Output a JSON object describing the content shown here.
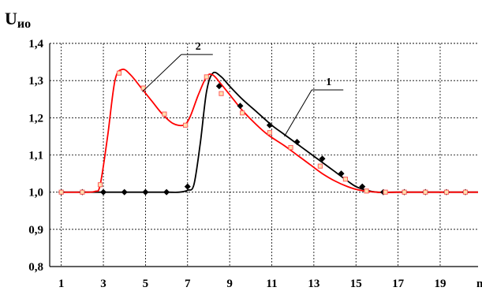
{
  "chart_data": {
    "type": "line",
    "ylabel": "U",
    "ylabel_sub": "ио",
    "xlabel": "n",
    "xlim": [
      0.45,
      20.8
    ],
    "ylim": [
      0.8,
      1.4
    ],
    "x_ticks": [
      1,
      3,
      5,
      7,
      9,
      11,
      13,
      15,
      17,
      19
    ],
    "y_ticks": [
      {
        "value": 0.8,
        "label": "0,8"
      },
      {
        "value": 0.9,
        "label": "0,9"
      },
      {
        "value": 1.0,
        "label": "1,0"
      },
      {
        "value": 1.1,
        "label": "1,1"
      },
      {
        "value": 1.2,
        "label": "1,2"
      },
      {
        "value": 1.3,
        "label": "1,3"
      },
      {
        "value": 1.4,
        "label": "1,4"
      }
    ],
    "grid": true,
    "series": [
      {
        "name": "1",
        "color": "#000000",
        "marker": "diamond",
        "curve": [
          [
            1,
            1.0
          ],
          [
            2,
            1.0
          ],
          [
            3,
            1.0
          ],
          [
            4,
            1.0
          ],
          [
            5,
            1.0
          ],
          [
            6,
            1.0
          ],
          [
            6.6,
            1.0
          ],
          [
            7,
            1.005
          ],
          [
            7.3,
            1.02
          ],
          [
            7.6,
            1.13
          ],
          [
            7.9,
            1.27
          ],
          [
            8.2,
            1.32
          ],
          [
            8.6,
            1.31
          ],
          [
            9,
            1.285
          ],
          [
            9.6,
            1.25
          ],
          [
            10.2,
            1.22
          ],
          [
            11,
            1.18
          ],
          [
            11.6,
            1.155
          ],
          [
            12.2,
            1.13
          ],
          [
            12.8,
            1.105
          ],
          [
            13.4,
            1.08
          ],
          [
            14,
            1.055
          ],
          [
            14.6,
            1.03
          ],
          [
            15,
            1.015
          ],
          [
            15.5,
            1.005
          ],
          [
            16,
            1.0
          ],
          [
            17,
            1.0
          ],
          [
            18,
            1.0
          ],
          [
            19,
            1.0
          ],
          [
            20,
            1.0
          ],
          [
            20.8,
            1.0
          ]
        ],
        "markers": [
          [
            1,
            1.0
          ],
          [
            2,
            1.0
          ],
          [
            3,
            1.0
          ],
          [
            4,
            1.0
          ],
          [
            5,
            1.0
          ],
          [
            6,
            1.0
          ],
          [
            7,
            1.015
          ],
          [
            8.5,
            1.285
          ],
          [
            9.5,
            1.232
          ],
          [
            10.9,
            1.18
          ],
          [
            12.2,
            1.135
          ],
          [
            13.4,
            1.09
          ],
          [
            14.3,
            1.05
          ],
          [
            15.3,
            1.015
          ],
          [
            16.3,
            1.0
          ],
          [
            17.3,
            1.0
          ],
          [
            18.3,
            1.0
          ],
          [
            19.3,
            1.0
          ],
          [
            20.2,
            1.0
          ]
        ]
      },
      {
        "name": "2",
        "color": "#ff0000",
        "marker": "square",
        "curve": [
          [
            1,
            1.0
          ],
          [
            2,
            1.0
          ],
          [
            2.6,
            1.002
          ],
          [
            2.85,
            1.02
          ],
          [
            3.2,
            1.15
          ],
          [
            3.55,
            1.3
          ],
          [
            3.9,
            1.33
          ],
          [
            4.3,
            1.315
          ],
          [
            4.8,
            1.28
          ],
          [
            5.3,
            1.245
          ],
          [
            5.8,
            1.21
          ],
          [
            6.3,
            1.185
          ],
          [
            6.8,
            1.18
          ],
          [
            7.1,
            1.2
          ],
          [
            7.5,
            1.26
          ],
          [
            7.9,
            1.31
          ],
          [
            8.2,
            1.315
          ],
          [
            8.6,
            1.29
          ],
          [
            9.1,
            1.255
          ],
          [
            9.6,
            1.22
          ],
          [
            10.2,
            1.185
          ],
          [
            10.8,
            1.155
          ],
          [
            11.6,
            1.125
          ],
          [
            12.2,
            1.1
          ],
          [
            12.8,
            1.075
          ],
          [
            13.4,
            1.05
          ],
          [
            14,
            1.03
          ],
          [
            14.6,
            1.015
          ],
          [
            15.2,
            1.005
          ],
          [
            16,
            1.0
          ],
          [
            17,
            1.0
          ],
          [
            18,
            1.0
          ],
          [
            19,
            1.0
          ],
          [
            20,
            1.0
          ],
          [
            20.8,
            1.0
          ]
        ],
        "markers": [
          [
            1,
            1.0
          ],
          [
            2,
            1.0
          ],
          [
            2.85,
            1.02
          ],
          [
            3.75,
            1.32
          ],
          [
            4.9,
            1.28
          ],
          [
            5.9,
            1.21
          ],
          [
            6.9,
            1.18
          ],
          [
            7.9,
            1.31
          ],
          [
            8.6,
            1.265
          ],
          [
            9.6,
            1.213
          ],
          [
            10.9,
            1.16
          ],
          [
            11.9,
            1.12
          ],
          [
            13.3,
            1.07
          ],
          [
            14.5,
            1.035
          ],
          [
            15.5,
            1.003
          ],
          [
            16.4,
            1.0
          ],
          [
            17.3,
            1.0
          ],
          [
            18.3,
            1.0
          ],
          [
            19.3,
            1.0
          ],
          [
            20.2,
            1.0
          ]
        ]
      }
    ],
    "annotations": [
      {
        "text": "2",
        "series": "2",
        "point": [
          4.85,
          1.27
        ],
        "label_at": [
          6.7,
          1.37
        ]
      },
      {
        "text": "1",
        "series": "1",
        "point": [
          11.6,
          1.15
        ],
        "label_at": [
          12.9,
          1.275
        ]
      }
    ]
  }
}
